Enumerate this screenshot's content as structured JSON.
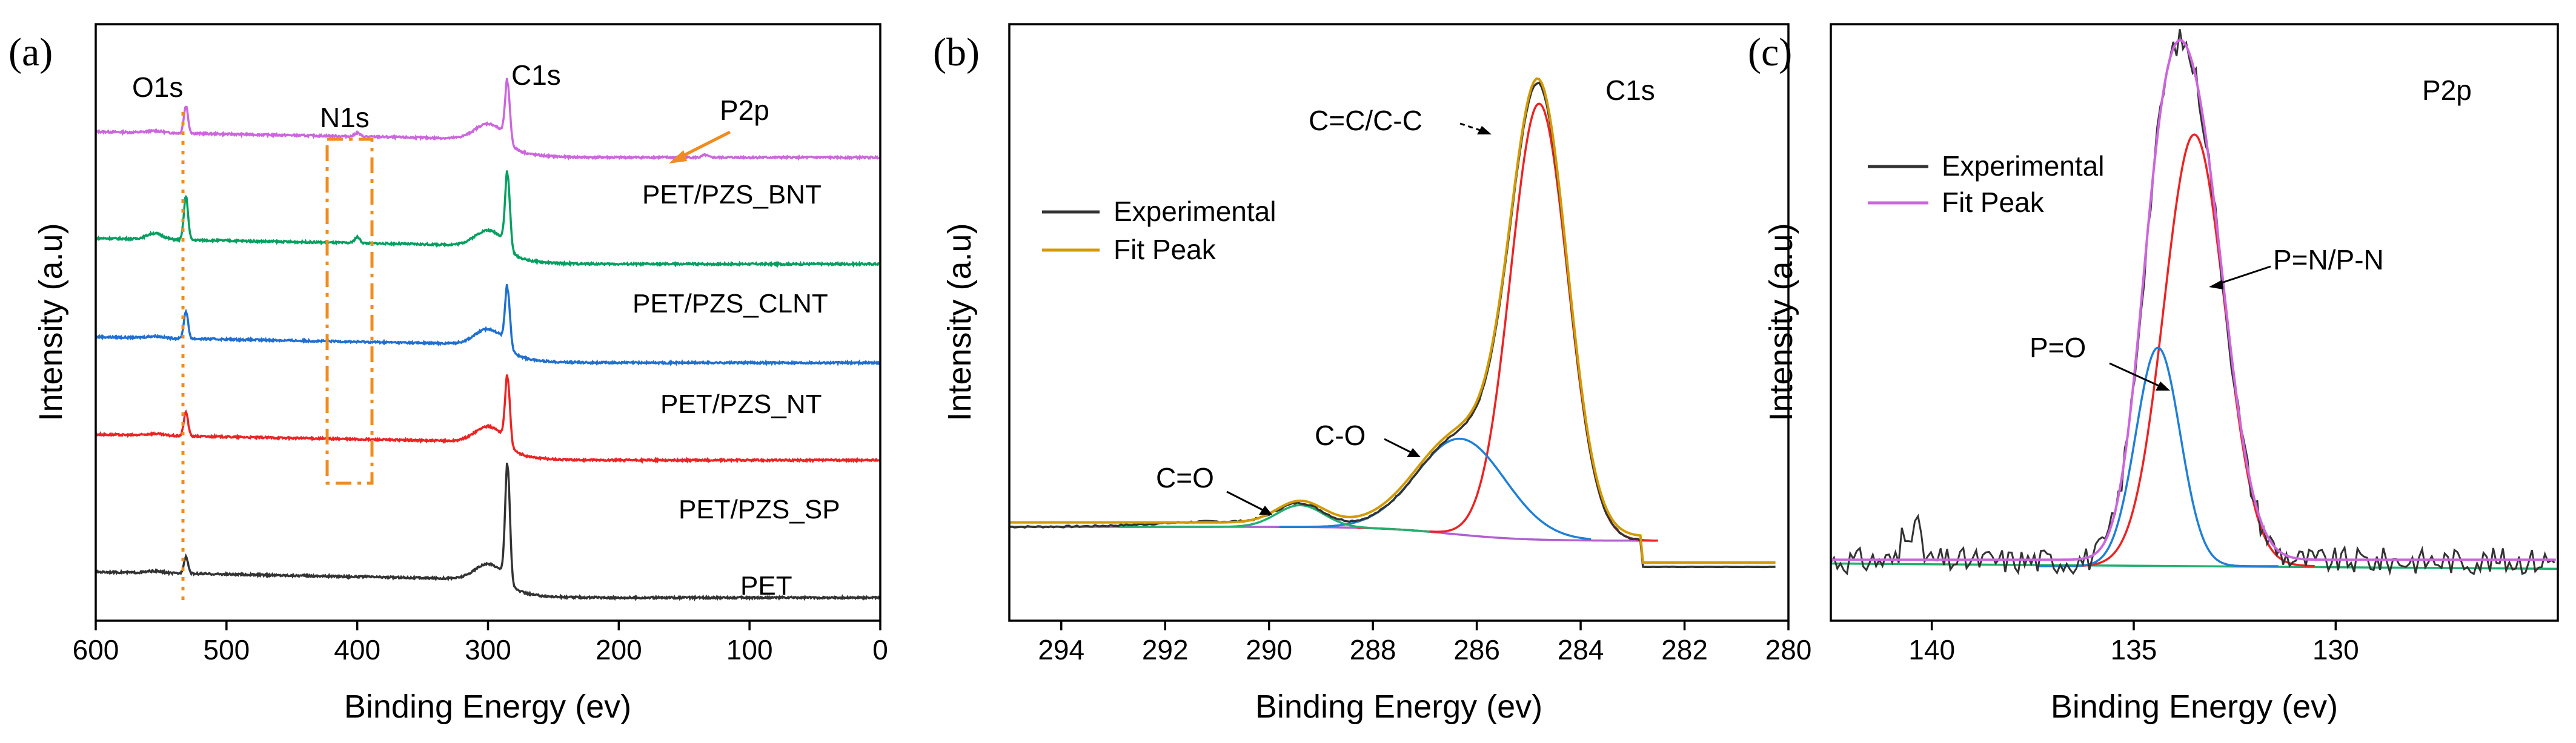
{
  "chart_data": [
    {
      "panel": "(a)",
      "type": "line",
      "title": "",
      "xlabel": "Binding Energy (ev)",
      "ylabel": "Intensity (a.u)",
      "xlim": [
        600,
        0
      ],
      "xticks": [
        "600",
        "500",
        "400",
        "300",
        "200",
        "100",
        "0"
      ],
      "xtick_values": [
        600,
        500,
        400,
        300,
        200,
        100,
        0
      ],
      "stacked": true,
      "series": [
        {
          "name": "PET/PZS_BNT",
          "color": "#cc66dd",
          "offset": 4
        },
        {
          "name": "PET/PZS_CLNT",
          "color": "#00a060",
          "offset": 3
        },
        {
          "name": "PET/PZS_NT",
          "color": "#1f6fd0",
          "offset": 2
        },
        {
          "name": "PET/PZS_SP",
          "color": "#ee2222",
          "offset": 1
        },
        {
          "name": "PET",
          "color": "#333333",
          "offset": 0
        }
      ],
      "peaks": [
        {
          "label": "O1s",
          "x": 531
        },
        {
          "label": "N1s",
          "x": 400
        },
        {
          "label": "C1s",
          "x": 285
        },
        {
          "label": "P2p",
          "x": 134
        }
      ],
      "annotation_color": "#f08c1e"
    },
    {
      "panel": "(b)",
      "type": "line",
      "title": "C1s",
      "xlabel": "Binding Energy (ev)",
      "ylabel": "Intensity (a.u)",
      "xlim": [
        295,
        280
      ],
      "xticks": [
        "294",
        "292",
        "290",
        "288",
        "286",
        "284",
        "282",
        "280"
      ],
      "xtick_values": [
        294,
        292,
        290,
        288,
        286,
        284,
        282,
        280
      ],
      "legend": [
        {
          "name": "Experimental",
          "color": "#333333"
        },
        {
          "name": "Fit Peak",
          "color": "#d39a00"
        }
      ],
      "components": [
        {
          "label": "C=C/C-C",
          "center": 284.8,
          "height": 1.0,
          "color": "#ee2222"
        },
        {
          "label": "C-O",
          "center": 286.3,
          "height": 0.22,
          "color": "#1f7fd8"
        },
        {
          "label": "C=O",
          "center": 289.4,
          "height": 0.05,
          "color": "#20b070"
        }
      ],
      "background_color": "#b060d0"
    },
    {
      "panel": "(c)",
      "type": "line",
      "title": "P2p",
      "xlabel": "Binding Energy (ev)",
      "ylabel": "Intensity (a.u)",
      "xlim": [
        142.5,
        124.5
      ],
      "xticks": [
        "140",
        "135",
        "130"
      ],
      "xtick_values": [
        140,
        135,
        130
      ],
      "legend": [
        {
          "name": "Experimental",
          "color": "#333333"
        },
        {
          "name": "Fit Peak",
          "color": "#cc66dd"
        }
      ],
      "components": [
        {
          "label": "P=N/P-N",
          "center": 133.5,
          "height": 0.81,
          "color": "#ee2222"
        },
        {
          "label": "P=O",
          "center": 134.4,
          "height": 0.41,
          "color": "#1f7fd8"
        }
      ],
      "background_color": "#20b070"
    }
  ]
}
